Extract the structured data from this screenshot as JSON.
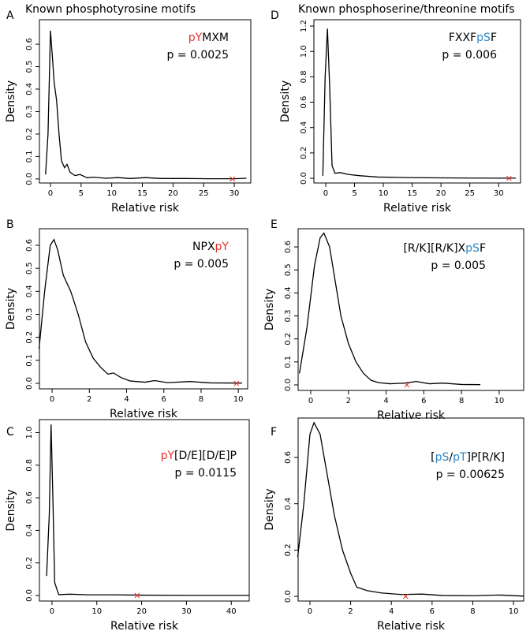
{
  "headers": [
    "Known phosphotyrosine motifs",
    "Known phosphoserine/threonine motifs"
  ],
  "chart_data": [
    {
      "type": "line",
      "panel": "A",
      "motif": [
        {
          "text": "pY",
          "color": "#e8302a"
        },
        {
          "text": "MXM",
          "color": "#000000"
        }
      ],
      "annotation": "p = 0.0025",
      "xlabel": "Relative risk",
      "ylabel": "Density",
      "color": "#000000",
      "xlim": [
        -1.8,
        32.7
      ],
      "ylim": [
        -0.018,
        0.709
      ],
      "xticks": [
        0,
        5,
        10,
        15,
        20,
        25,
        30
      ],
      "yticks": [
        {
          "value": 0,
          "label": "0.0"
        },
        0.1,
        0.2,
        0.3,
        0.4,
        0.5,
        0.6
      ],
      "x": [
        -0.8,
        -0.4,
        0,
        0.3,
        0.6,
        1,
        1.4,
        1.8,
        2.3,
        2.7,
        3.2,
        4,
        4.8,
        6,
        7,
        9,
        11,
        13,
        15.5,
        18,
        22,
        26,
        30,
        32
      ],
      "values": [
        0.02,
        0.2,
        0.66,
        0.55,
        0.43,
        0.35,
        0.2,
        0.08,
        0.05,
        0.065,
        0.03,
        0.015,
        0.02,
        0.005,
        0.008,
        0.003,
        0.006,
        0.002,
        0.006,
        0.002,
        0.002,
        0.001,
        0.001,
        0.003
      ],
      "marker": {
        "x": 29.7,
        "y": 0,
        "color": "#e8302a"
      }
    },
    {
      "type": "line",
      "panel": "B",
      "motif": [
        {
          "text": "NPX",
          "color": "#000000"
        },
        {
          "text": "pY",
          "color": "#e8302a"
        }
      ],
      "annotation": "p = 0.005",
      "xlabel": "Relative risk",
      "ylabel": "Density",
      "color": "#000000",
      "xlim": [
        -0.68,
        10.5
      ],
      "ylim": [
        -0.024,
        0.672
      ],
      "xticks": [
        0,
        2,
        4,
        6,
        8,
        10
      ],
      "yticks": [
        {
          "value": 0,
          "label": "0.0"
        },
        0.1,
        0.2,
        0.3,
        0.4,
        0.5,
        0.6
      ],
      "x": [
        -0.7,
        -0.4,
        -0.1,
        0.1,
        0.3,
        0.6,
        1,
        1.4,
        1.8,
        2.2,
        2.6,
        3,
        3.3,
        3.7,
        4.2,
        5,
        5.5,
        6.2,
        7.4,
        8.5,
        10.2
      ],
      "values": [
        0.15,
        0.4,
        0.6,
        0.625,
        0.58,
        0.47,
        0.4,
        0.3,
        0.18,
        0.11,
        0.07,
        0.04,
        0.045,
        0.025,
        0.01,
        0.005,
        0.012,
        0.003,
        0.008,
        0.002,
        0.001
      ],
      "marker": {
        "x": 9.9,
        "y": 0,
        "color": "#e8302a"
      }
    },
    {
      "type": "line",
      "panel": "C",
      "motif": [
        {
          "text": "pY",
          "color": "#e8302a"
        },
        {
          "text": "[D/E][D/E]P",
          "color": "#000000"
        }
      ],
      "annotation": "p = 0.0115",
      "xlabel": "Relative risk",
      "ylabel": "Density",
      "color": "#000000",
      "xlim": [
        -2.8,
        44
      ],
      "ylim": [
        -0.034,
        1.08
      ],
      "xticks": [
        0,
        10,
        20,
        30,
        40
      ],
      "yticks": [
        {
          "value": 0,
          "label": "0.0"
        },
        0.2,
        0.4,
        0.6,
        0.8,
        {
          "value": 1,
          "label": "1.0"
        }
      ],
      "x": [
        -1.2,
        -0.6,
        -0.2,
        0.2,
        0.6,
        1.5,
        4,
        8,
        14,
        20,
        30,
        44
      ],
      "values": [
        0.12,
        0.5,
        1.05,
        0.6,
        0.08,
        0.005,
        0.008,
        0.004,
        0.004,
        0.002,
        0.001,
        0.001
      ],
      "marker": {
        "x": 19,
        "y": 0,
        "color": "#e8302a"
      }
    },
    {
      "type": "line",
      "panel": "D",
      "motif": [
        {
          "text": "FXXF",
          "color": "#000000"
        },
        {
          "text": "pS",
          "color": "#2b86c5"
        },
        {
          "text": "F",
          "color": "#000000"
        }
      ],
      "annotation": "p = 0.006",
      "xlabel": "Relative risk",
      "ylabel": "Density",
      "color": "#000000",
      "xlim": [
        -2.05,
        33.8
      ],
      "ylim": [
        -0.037,
        1.25
      ],
      "xticks": [
        0,
        5,
        10,
        15,
        20,
        25,
        30
      ],
      "yticks": [
        {
          "value": 0,
          "label": "0.0"
        },
        0.2,
        0.4,
        0.6,
        0.8,
        {
          "value": 1,
          "label": "1.0"
        },
        1.2
      ],
      "x": [
        -0.5,
        -0.1,
        0.3,
        0.7,
        1.1,
        1.6,
        2.5,
        4,
        6,
        9,
        15,
        25,
        33
      ],
      "values": [
        0.02,
        0.8,
        1.18,
        0.7,
        0.1,
        0.04,
        0.045,
        0.03,
        0.02,
        0.01,
        0.005,
        0.002,
        0.001
      ],
      "marker": {
        "x": 31.8,
        "y": 0,
        "color": "#e8302a"
      }
    },
    {
      "type": "line",
      "panel": "E",
      "motif": [
        {
          "text": "[R/K][R/K]X",
          "color": "#000000"
        },
        {
          "text": "pS",
          "color": "#2b86c5"
        },
        {
          "text": "F",
          "color": "#000000"
        }
      ],
      "annotation": "p = 0.005",
      "xlabel": "Relative risk",
      "ylabel": "Density",
      "color": "#000000",
      "xlim": [
        -0.67,
        11.3
      ],
      "ylim": [
        -0.024,
        0.679
      ],
      "xticks": [
        0,
        2,
        4,
        6,
        8,
        10
      ],
      "yticks": [
        {
          "value": 0,
          "label": "0.0"
        },
        0.1,
        0.2,
        0.3,
        0.4,
        0.5,
        0.6
      ],
      "x": [
        -0.6,
        -0.2,
        0.2,
        0.5,
        0.7,
        1,
        1.3,
        1.6,
        2,
        2.4,
        2.8,
        3.2,
        3.6,
        4.2,
        5,
        5.6,
        6.3,
        7,
        8,
        9
      ],
      "values": [
        0.05,
        0.25,
        0.52,
        0.64,
        0.66,
        0.6,
        0.45,
        0.3,
        0.18,
        0.1,
        0.05,
        0.02,
        0.01,
        0.005,
        0.008,
        0.015,
        0.005,
        0.008,
        0.002,
        0.001
      ],
      "marker": {
        "x": 5.1,
        "y": 0,
        "color": "#e8302a"
      }
    },
    {
      "type": "line",
      "panel": "F",
      "motif": [
        {
          "text": "[",
          "color": "#000000"
        },
        {
          "text": "pS",
          "color": "#2b86c5"
        },
        {
          "text": "/",
          "color": "#000000"
        },
        {
          "text": "pT",
          "color": "#2b86c5"
        },
        {
          "text": "]P[R/K]",
          "color": "#000000"
        }
      ],
      "annotation": "p = 0.00625",
      "xlabel": "Relative risk",
      "ylabel": "Density",
      "color": "#000000",
      "xlim": [
        -0.58,
        10.5
      ],
      "ylim": [
        -0.02,
        0.77
      ],
      "xticks": [
        0,
        2,
        4,
        6,
        8,
        10
      ],
      "yticks": [
        {
          "value": 0,
          "label": "0.0"
        },
        0.2,
        0.4,
        0.6
      ],
      "x": [
        -0.6,
        -0.3,
        0,
        0.2,
        0.5,
        0.8,
        1.2,
        1.6,
        2,
        2.3,
        2.8,
        3.5,
        4.5,
        5.5,
        6.5,
        8,
        9.3,
        10.5
      ],
      "values": [
        0.17,
        0.4,
        0.7,
        0.75,
        0.7,
        0.55,
        0.35,
        0.2,
        0.1,
        0.04,
        0.025,
        0.015,
        0.008,
        0.01,
        0.004,
        0.003,
        0.006,
        0.001
      ],
      "marker": {
        "x": 4.7,
        "y": 0,
        "color": "#e8302a"
      }
    }
  ]
}
